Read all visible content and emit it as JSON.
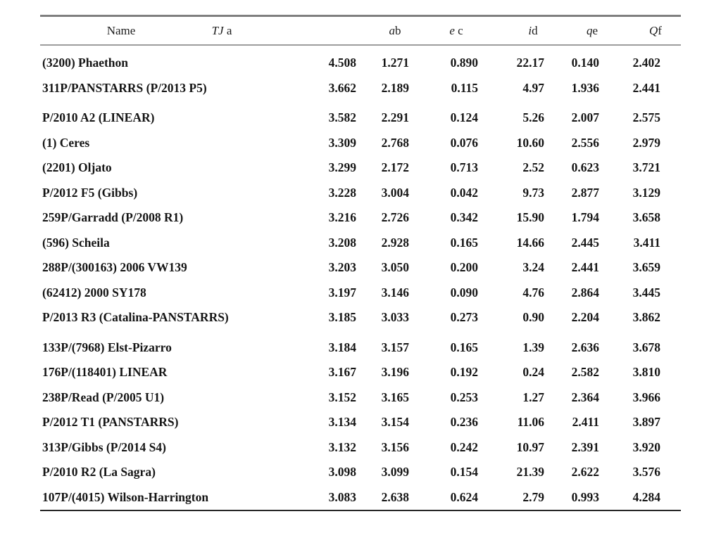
{
  "table": {
    "columns": [
      {
        "symbol": "Name",
        "marker": "",
        "italic": false
      },
      {
        "symbol": "TJ",
        "marker": " a",
        "italic": true
      },
      {
        "symbol": "a",
        "marker": "b",
        "italic": true
      },
      {
        "symbol": "e",
        "marker": " c",
        "italic": true
      },
      {
        "symbol": "i",
        "marker": "d",
        "italic": true
      },
      {
        "symbol": "q",
        "marker": "e",
        "italic": true
      },
      {
        "symbol": "Q",
        "marker": "f",
        "italic": true
      }
    ],
    "rows": [
      {
        "name": "(3200) Phaethon",
        "tj": "4.508",
        "a": "1.271",
        "e": "0.890",
        "i": "22.17",
        "q": "0.140",
        "Q": "2.402"
      },
      {
        "name": "311P/PANSTARRS (P/2013 P5)",
        "tj": "3.662",
        "a": "2.189",
        "e": "0.115",
        "i": "4.97",
        "q": "1.936",
        "Q": "2.441"
      },
      {
        "name": "P/2010 A2 (LINEAR)",
        "tj": "3.582",
        "a": "2.291",
        "e": "0.124",
        "i": "5.26",
        "q": "2.007",
        "Q": "2.575"
      },
      {
        "name": "(1) Ceres",
        "tj": "3.309",
        "a": "2.768",
        "e": "0.076",
        "i": "10.60",
        "q": "2.556",
        "Q": "2.979"
      },
      {
        "name": "(2201) Oljato",
        "tj": "3.299",
        "a": "2.172",
        "e": "0.713",
        "i": "2.52",
        "q": "0.623",
        "Q": "3.721"
      },
      {
        "name": "P/2012 F5 (Gibbs)",
        "tj": "3.228",
        "a": "3.004",
        "e": "0.042",
        "i": "9.73",
        "q": "2.877",
        "Q": "3.129"
      },
      {
        "name": "259P/Garradd (P/2008 R1)",
        "tj": "3.216",
        "a": "2.726",
        "e": "0.342",
        "i": "15.90",
        "q": "1.794",
        "Q": "3.658"
      },
      {
        "name": "(596) Scheila",
        "tj": "3.208",
        "a": "2.928",
        "e": "0.165",
        "i": "14.66",
        "q": "2.445",
        "Q": "3.411"
      },
      {
        "name": "288P/(300163) 2006 VW139",
        "tj": "3.203",
        "a": "3.050",
        "e": "0.200",
        "i": "3.24",
        "q": "2.441",
        "Q": "3.659"
      },
      {
        "name": "(62412) 2000 SY178",
        "tj": "3.197",
        "a": "3.146",
        "e": "0.090",
        "i": "4.76",
        "q": "2.864",
        "Q": "3.445"
      },
      {
        "name": "P/2013 R3 (Catalina-PANSTARRS)",
        "tj": "3.185",
        "a": "3.033",
        "e": "0.273",
        "i": "0.90",
        "q": "2.204",
        "Q": "3.862"
      },
      {
        "name": "133P/(7968) Elst-Pizarro",
        "tj": "3.184",
        "a": "3.157",
        "e": "0.165",
        "i": "1.39",
        "q": "2.636",
        "Q": "3.678"
      },
      {
        "name": "176P/(118401) LINEAR",
        "tj": "3.167",
        "a": "3.196",
        "e": "0.192",
        "i": "0.24",
        "q": "2.582",
        "Q": "3.810"
      },
      {
        "name": "238P/Read (P/2005 U1)",
        "tj": "3.152",
        "a": "3.165",
        "e": "0.253",
        "i": "1.27",
        "q": "2.364",
        "Q": "3.966"
      },
      {
        "name": "P/2012 T1 (PANSTARRS)",
        "tj": "3.134",
        "a": "3.154",
        "e": "0.236",
        "i": "11.06",
        "q": "2.411",
        "Q": "3.897"
      },
      {
        "name": "313P/Gibbs (P/2014 S4)",
        "tj": "3.132",
        "a": "3.156",
        "e": "0.242",
        "i": "10.97",
        "q": "2.391",
        "Q": "3.920"
      },
      {
        "name": "P/2010 R2 (La Sagra)",
        "tj": "3.098",
        "a": "3.099",
        "e": "0.154",
        "i": "21.39",
        "q": "2.622",
        "Q": "3.576"
      },
      {
        "name": "107P/(4015) Wilson-Harrington",
        "tj": "3.083",
        "a": "2.638",
        "e": "0.624",
        "i": "2.79",
        "q": "0.993",
        "Q": "4.284"
      }
    ],
    "gap_before_row_indices": [
      2,
      11
    ]
  },
  "colors": {
    "background": "#ffffff",
    "rule_top": "#7f7f7f",
    "rule_mid": "#9c9c9c",
    "rule_bottom": "#262626",
    "text": "#151515"
  }
}
